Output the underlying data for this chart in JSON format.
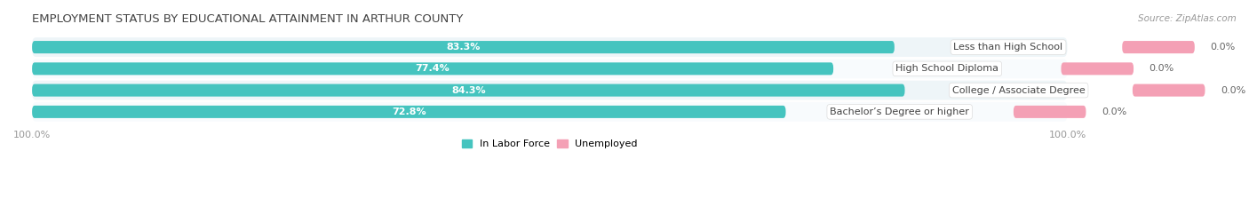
{
  "title": "EMPLOYMENT STATUS BY EDUCATIONAL ATTAINMENT IN ARTHUR COUNTY",
  "source": "Source: ZipAtlas.com",
  "categories": [
    "Less than High School",
    "High School Diploma",
    "College / Associate Degree",
    "Bachelor’s Degree or higher"
  ],
  "labor_force_pct": [
    83.3,
    77.4,
    84.3,
    72.8
  ],
  "unemployed_pct": [
    0.0,
    0.0,
    0.0,
    0.0
  ],
  "labor_force_color": "#45C4BF",
  "unemployed_color": "#F4A0B5",
  "row_bg_odd": "#EEF5F8",
  "row_bg_even": "#F8FBFD",
  "label_color_lf": "#FFFFFF",
  "label_color_un": "#666666",
  "category_label_color": "#444444",
  "axis_label_color": "#999999",
  "title_color": "#444444",
  "title_fontsize": 9.5,
  "source_fontsize": 7.5,
  "bar_fontsize": 8,
  "cat_fontsize": 8,
  "legend_fontsize": 8,
  "axis_tick_fontsize": 8,
  "left_axis_label": "100.0%",
  "right_axis_label": "100.0%",
  "total_scale": 100.0,
  "pink_stub": 7.0,
  "figsize": [
    14.06,
    2.33
  ],
  "dpi": 100
}
